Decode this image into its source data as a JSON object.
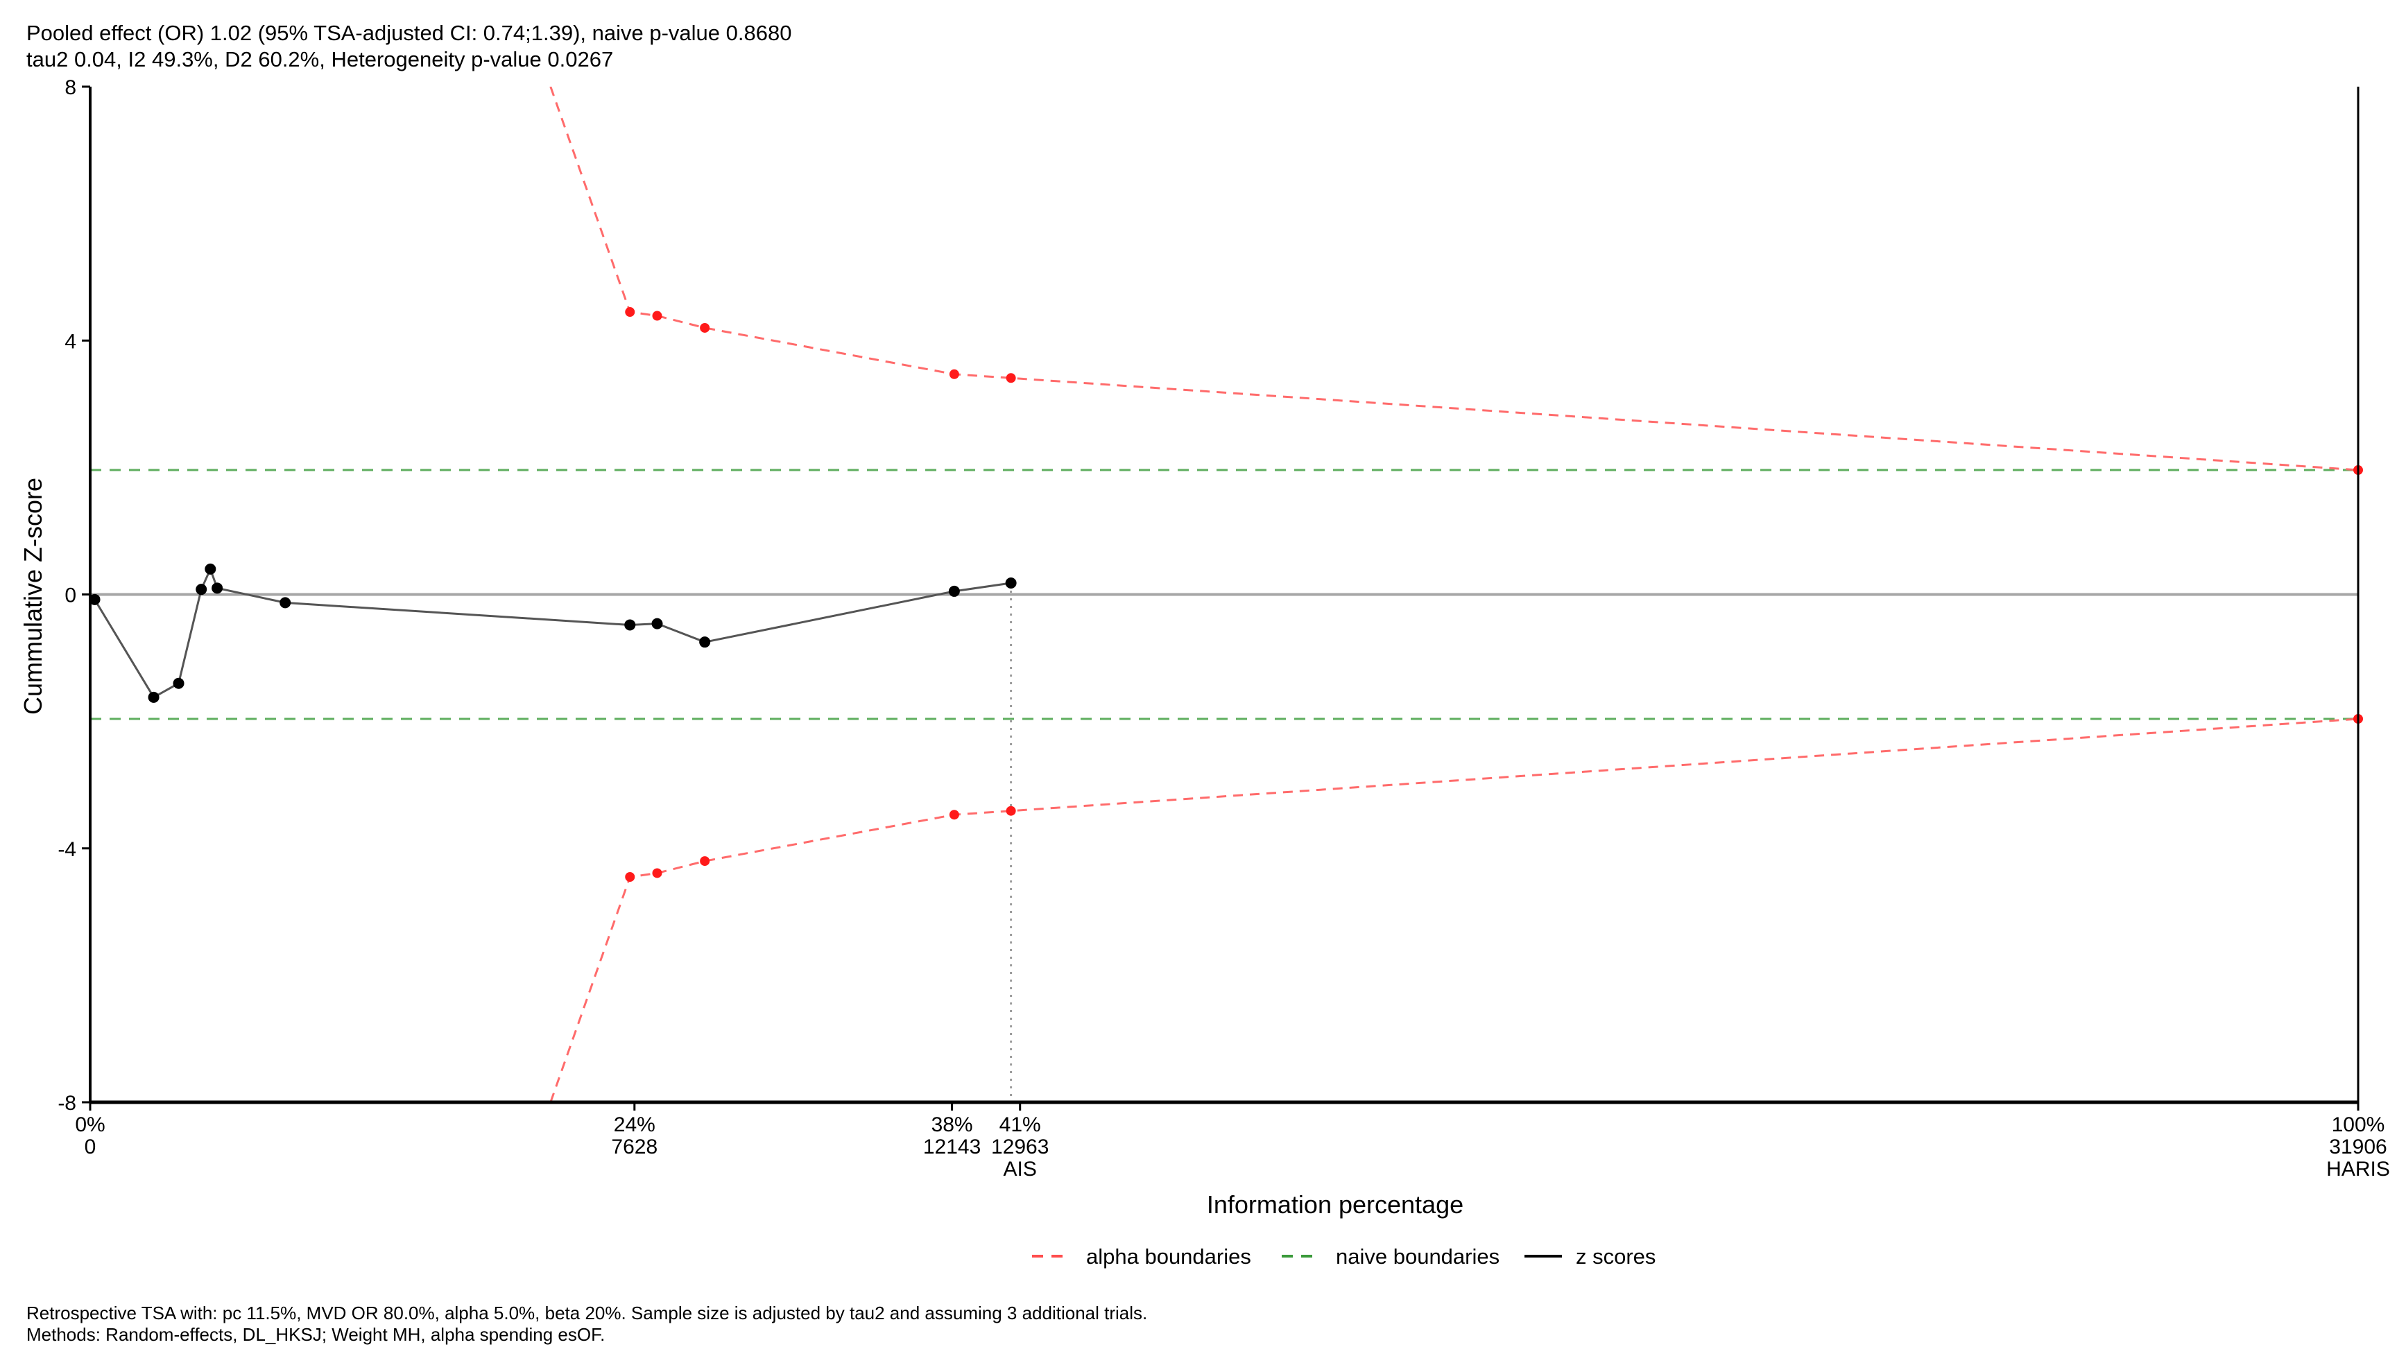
{
  "header": {
    "line1": "Pooled effect (OR) 1.02 (95% TSA-adjusted CI: 0.74;1.39), naive p-value 0.8680",
    "line2": "tau2 0.04, I2 49.3%, D2 60.2%, Heterogeneity p-value 0.0267"
  },
  "footer": {
    "line1": "Retrospective TSA with: pc 11.5%, MVD OR 80.0%, alpha 5.0%, beta 20%. Sample size is adjusted by tau2 and assuming 3 additional trials.",
    "line2": "Methods: Random-effects, DL_HKSJ; Weight MH, alpha spending esOF."
  },
  "chart_data": {
    "type": "line",
    "xlabel": "Information percentage",
    "ylabel": "Cummulative Z-score",
    "xlim": [
      0,
      100
    ],
    "ylim": [
      -8,
      8
    ],
    "yticks": [
      -8,
      -4,
      0,
      4,
      8
    ],
    "xticks": [
      {
        "x": 0,
        "pct": "0%",
        "n": "0",
        "extra": ""
      },
      {
        "x": 24,
        "pct": "24%",
        "n": "7628",
        "extra": ""
      },
      {
        "x": 38,
        "pct": "38%",
        "n": "12143",
        "extra": ""
      },
      {
        "x": 41,
        "pct": "41%",
        "n": "12963",
        "extra": "AIS"
      },
      {
        "x": 100,
        "pct": "100%",
        "n": "31906",
        "extra": "HARIS"
      }
    ],
    "naive_boundary": 1.96,
    "ais_x": 40.6,
    "series": [
      {
        "name": "z scores",
        "x": [
          0.2,
          2.8,
          3.9,
          4.9,
          5.3,
          5.6,
          8.6,
          23.8,
          25.0,
          27.1,
          38.1,
          40.6
        ],
        "y": [
          -0.08,
          -1.62,
          -1.4,
          0.08,
          0.4,
          0.1,
          -0.13,
          -0.48,
          -0.46,
          -0.75,
          0.05,
          0.18
        ]
      },
      {
        "name": "alpha boundaries",
        "x": [
          20.3,
          23.8,
          25.0,
          27.1,
          38.1,
          40.6,
          100
        ],
        "upper": [
          8.0,
          4.45,
          4.39,
          4.2,
          3.47,
          3.41,
          1.96
        ],
        "lower": [
          -8.0,
          -4.45,
          -4.39,
          -4.2,
          -3.47,
          -3.41,
          -1.96
        ],
        "point_from": 1
      },
      {
        "name": "naive boundaries"
      }
    ],
    "legend": {
      "position": "bottom"
    }
  }
}
